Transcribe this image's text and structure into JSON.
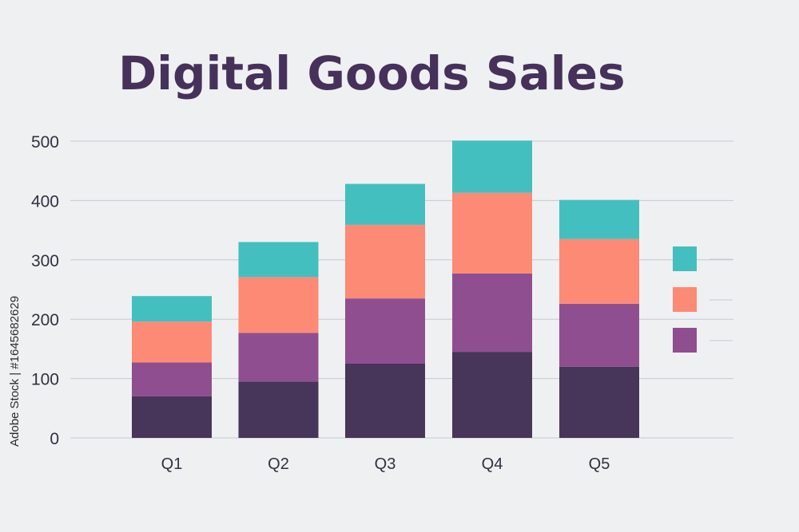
{
  "chart_data": {
    "type": "bar",
    "stacked": true,
    "title": "Digital Goods Sales",
    "xlabel": "",
    "ylabel": "",
    "ylim": [
      0,
      500
    ],
    "yticks": [
      0,
      100,
      200,
      300,
      400,
      500
    ],
    "grid": true,
    "categories": [
      "Q1",
      "Q2",
      "Q3",
      "Q4",
      "Q5"
    ],
    "series": [
      {
        "name": "",
        "color": "#47355a",
        "values": [
          70,
          95,
          125,
          145,
          120
        ]
      },
      {
        "name": "",
        "color": "#8f4e8f",
        "values": [
          57,
          82,
          110,
          132,
          106
        ]
      },
      {
        "name": "",
        "color": "#fc8a75",
        "values": [
          69,
          94,
          124,
          136,
          109
        ]
      },
      {
        "name": "",
        "color": "#44bfbf",
        "values": [
          43,
          59,
          69,
          88,
          66
        ]
      }
    ],
    "legend_position": "right"
  },
  "watermark": {
    "side_text": "Adobe Stock | #1645682629"
  },
  "colors": {
    "background": "#eff0f2",
    "title": "#46315b",
    "axis_text": "#2f3240",
    "grid": "#c2ccd0"
  }
}
